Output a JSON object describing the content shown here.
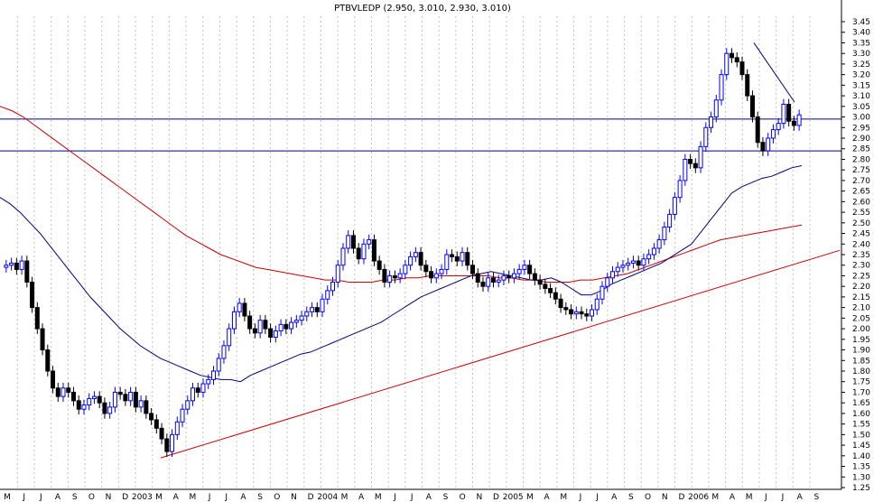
{
  "chart_data": {
    "type": "candlestick",
    "title": "PTBVLEDP (2.950, 3.010, 2.930, 3.010)",
    "ylim": [
      1.25,
      3.45
    ],
    "y_ticks": [
      "1.25",
      "1.30",
      "1.35",
      "1.40",
      "1.45",
      "1.50",
      "1.55",
      "1.60",
      "1.65",
      "1.70",
      "1.75",
      "1.80",
      "1.85",
      "1.90",
      "1.95",
      "2.00",
      "2.05",
      "2.10",
      "2.15",
      "2.20",
      "2.25",
      "2.30",
      "2.35",
      "2.40",
      "2.45",
      "2.50",
      "2.55",
      "2.60",
      "2.65",
      "2.70",
      "2.75",
      "2.80",
      "2.85",
      "2.90",
      "2.95",
      "3.00",
      "3.05",
      "3.10",
      "3.15",
      "3.20",
      "3.25",
      "3.30",
      "3.35",
      "3.40",
      "3.45"
    ],
    "x_ticks": [
      "M",
      "J",
      "J",
      "A",
      "S",
      "O",
      "N",
      "D",
      "2003",
      "M",
      "A",
      "M",
      "J",
      "J",
      "A",
      "S",
      "O",
      "N",
      "D",
      "2004",
      "M",
      "A",
      "M",
      "J",
      "J",
      "A",
      "S",
      "O",
      "N",
      "D",
      "2005",
      "M",
      "A",
      "M",
      "J",
      "J",
      "A",
      "S",
      "O",
      "N",
      "D",
      "2006",
      "M",
      "A",
      "M",
      "J",
      "J",
      "A",
      "S"
    ],
    "grid": "vertical-dotted",
    "horizontal_lines": [
      2.99,
      2.84
    ],
    "colors": {
      "up": "#0000ff",
      "down": "#000000",
      "ma_short": "#000080",
      "ma_long": "#cc0000",
      "hline": "#000080",
      "trendline": "#cc0000",
      "grid": "#c0c0c0"
    },
    "close": [
      2.3,
      2.31,
      2.28,
      2.32,
      2.22,
      2.1,
      2.0,
      1.9,
      1.8,
      1.72,
      1.68,
      1.72,
      1.7,
      1.66,
      1.62,
      1.64,
      1.67,
      1.68,
      1.65,
      1.6,
      1.63,
      1.7,
      1.69,
      1.66,
      1.7,
      1.63,
      1.66,
      1.6,
      1.57,
      1.53,
      1.48,
      1.42,
      1.5,
      1.56,
      1.62,
      1.66,
      1.72,
      1.7,
      1.74,
      1.76,
      1.8,
      1.86,
      1.92,
      2.0,
      2.08,
      2.12,
      2.06,
      2.0,
      1.98,
      2.04,
      2.0,
      1.96,
      1.99,
      2.02,
      2.0,
      2.03,
      2.04,
      2.06,
      2.08,
      2.1,
      2.08,
      2.14,
      2.18,
      2.22,
      2.3,
      2.38,
      2.44,
      2.38,
      2.33,
      2.4,
      2.42,
      2.32,
      2.28,
      2.22,
      2.25,
      2.24,
      2.26,
      2.3,
      2.34,
      2.36,
      2.3,
      2.27,
      2.24,
      2.26,
      2.28,
      2.35,
      2.34,
      2.32,
      2.36,
      2.3,
      2.26,
      2.22,
      2.2,
      2.24,
      2.22,
      2.23,
      2.25,
      2.24,
      2.26,
      2.28,
      2.3,
      2.26,
      2.23,
      2.21,
      2.19,
      2.17,
      2.14,
      2.1,
      2.09,
      2.07,
      2.08,
      2.07,
      2.06,
      2.09,
      2.14,
      2.2,
      2.24,
      2.27,
      2.29,
      2.3,
      2.31,
      2.32,
      2.3,
      2.33,
      2.35,
      2.38,
      2.42,
      2.48,
      2.54,
      2.62,
      2.7,
      2.8,
      2.78,
      2.76,
      2.86,
      2.95,
      3.0,
      3.08,
      3.2,
      3.3,
      3.28,
      3.26,
      3.2,
      3.1,
      3.0,
      2.88,
      2.84,
      2.9,
      2.94,
      2.97,
      3.06,
      2.98,
      2.96,
      3.01
    ],
    "ma_short": [
      2.62,
      2.59,
      2.55,
      2.5,
      2.45,
      2.39,
      2.33,
      2.27,
      2.21,
      2.15,
      2.1,
      2.05,
      2.0,
      1.96,
      1.92,
      1.89,
      1.86,
      1.84,
      1.82,
      1.8,
      1.78,
      1.77,
      1.76,
      1.76,
      1.75,
      1.78,
      1.8,
      1.82,
      1.84,
      1.86,
      1.88,
      1.89,
      1.91,
      1.93,
      1.95,
      1.97,
      1.99,
      2.01,
      2.03,
      2.06,
      2.09,
      2.12,
      2.15,
      2.17,
      2.19,
      2.21,
      2.23,
      2.25,
      2.26,
      2.27,
      2.26,
      2.25,
      2.24,
      2.23,
      2.23,
      2.24,
      2.22,
      2.19,
      2.16,
      2.16,
      2.18,
      2.21,
      2.23,
      2.25,
      2.27,
      2.29,
      2.31,
      2.34,
      2.37,
      2.4,
      2.46,
      2.52,
      2.58,
      2.64,
      2.67,
      2.69,
      2.71,
      2.72,
      2.74,
      2.76,
      2.77
    ],
    "ma_long": [
      3.05,
      3.03,
      3.0,
      2.96,
      2.92,
      2.88,
      2.84,
      2.8,
      2.76,
      2.72,
      2.68,
      2.64,
      2.6,
      2.56,
      2.52,
      2.48,
      2.44,
      2.41,
      2.38,
      2.35,
      2.33,
      2.31,
      2.29,
      2.28,
      2.27,
      2.26,
      2.25,
      2.24,
      2.23,
      2.23,
      2.22,
      2.22,
      2.22,
      2.23,
      2.23,
      2.24,
      2.24,
      2.25,
      2.25,
      2.25,
      2.25,
      2.25,
      2.25,
      2.24,
      2.24,
      2.23,
      2.23,
      2.22,
      2.22,
      2.22,
      2.23,
      2.23,
      2.24,
      2.25,
      2.26,
      2.28,
      2.3,
      2.32,
      2.34,
      2.36,
      2.38,
      2.4,
      2.42,
      2.43,
      2.44,
      2.45,
      2.46,
      2.47,
      2.48,
      2.49
    ],
    "trendline": [
      [
        1.39,
        2.37
      ]
    ]
  }
}
